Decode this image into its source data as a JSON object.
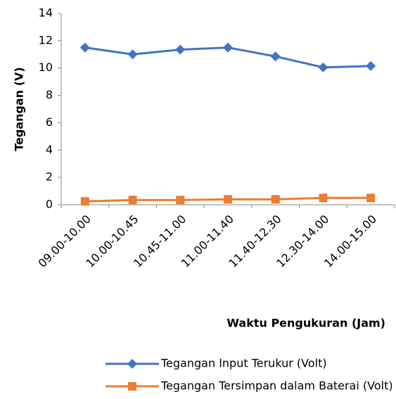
{
  "chart_data": {
    "type": "line",
    "categories": [
      "09.00-10.00",
      "10.00-10.45",
      "10.45-11.00",
      "11.00-11.40",
      "11.40-12.30",
      "12.30-14.00",
      "14.00-15.00"
    ],
    "series": [
      {
        "name": "Tegangan Input Terukur (Volt)",
        "color": "#4472c4",
        "marker": "diamond",
        "values": [
          11.5,
          11.0,
          11.35,
          11.5,
          10.85,
          10.05,
          10.15
        ]
      },
      {
        "name": "Tegangan Tersimpan dalam Baterai (Volt)",
        "color": "#ed7d31",
        "marker": "square",
        "values": [
          0.25,
          0.35,
          0.35,
          0.4,
          0.4,
          0.5,
          0.5
        ]
      }
    ],
    "y_label": "Tegangan (V)",
    "x_label": "Waktu Pengukuran  (Jam)",
    "ylim": [
      0,
      14
    ],
    "yticks": [
      0,
      2,
      4,
      6,
      8,
      10,
      12,
      14
    ],
    "legend": "bottom"
  }
}
